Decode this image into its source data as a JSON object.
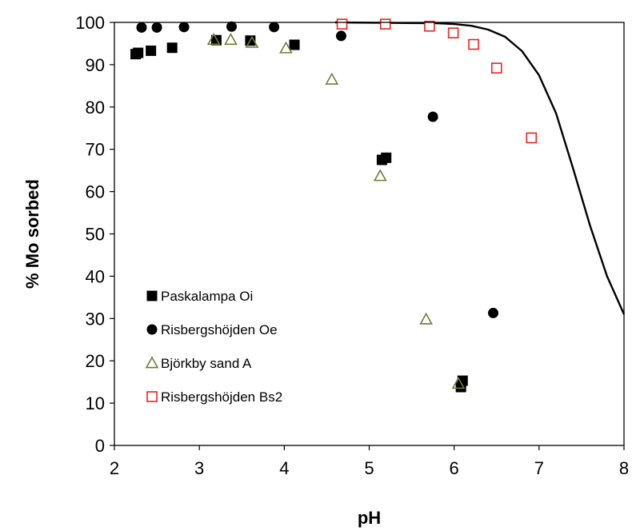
{
  "chart_data": {
    "type": "scatter",
    "title": "",
    "xlabel": "pH",
    "ylabel": "% Mo sorbed",
    "xlim": [
      2,
      8
    ],
    "ylim": [
      0,
      100
    ],
    "xticks": [
      "2",
      "3",
      "4",
      "5",
      "6",
      "7",
      "8"
    ],
    "yticks": [
      "0",
      "10",
      "20",
      "30",
      "40",
      "50",
      "60",
      "70",
      "80",
      "90",
      "100"
    ],
    "grid": false,
    "legend_position": "left",
    "series": [
      {
        "name": "Paskalampa Oi",
        "marker": "filled-square",
        "color": "#000000",
        "points": [
          [
            2.25,
            92.5
          ],
          [
            2.28,
            92.8
          ],
          [
            2.43,
            93.3
          ],
          [
            2.68,
            94.0
          ],
          [
            3.2,
            95.8
          ],
          [
            3.6,
            95.7
          ],
          [
            4.12,
            94.7
          ],
          [
            5.15,
            67.5
          ],
          [
            5.2,
            68.0
          ],
          [
            6.08,
            13.8
          ],
          [
            6.1,
            15.3
          ]
        ]
      },
      {
        "name": "Risbergshöjden Oe",
        "marker": "filled-circle",
        "color": "#000000",
        "points": [
          [
            2.32,
            98.8
          ],
          [
            2.5,
            98.8
          ],
          [
            2.82,
            98.9
          ],
          [
            3.38,
            99.0
          ],
          [
            3.88,
            98.9
          ],
          [
            4.67,
            96.8
          ],
          [
            5.75,
            77.7
          ],
          [
            6.46,
            31.3
          ]
        ]
      },
      {
        "name": "Björkby sand A",
        "marker": "open-triangle",
        "color": "#6b7f35",
        "points": [
          [
            3.17,
            95.9
          ],
          [
            3.37,
            95.9
          ],
          [
            3.62,
            95.2
          ],
          [
            4.02,
            93.9
          ],
          [
            4.56,
            86.5
          ],
          [
            5.13,
            63.7
          ],
          [
            5.67,
            29.8
          ],
          [
            6.05,
            14.6
          ]
        ]
      },
      {
        "name": "Risbergshöjden Bs2",
        "marker": "open-square",
        "color": "#e8231f",
        "points": [
          [
            4.68,
            99.6
          ],
          [
            5.19,
            99.6
          ],
          [
            5.71,
            99.1
          ],
          [
            5.99,
            97.5
          ],
          [
            6.23,
            94.8
          ],
          [
            6.5,
            89.2
          ],
          [
            6.91,
            72.7
          ]
        ]
      }
    ],
    "model_curve": {
      "color": "#000000",
      "points": [
        [
          4.6,
          100.0
        ],
        [
          5.8,
          99.8
        ],
        [
          6.0,
          99.6
        ],
        [
          6.2,
          99.2
        ],
        [
          6.4,
          98.3
        ],
        [
          6.6,
          96.6
        ],
        [
          6.8,
          93.2
        ],
        [
          7.0,
          87.5
        ],
        [
          7.2,
          78.5
        ],
        [
          7.4,
          65.5
        ],
        [
          7.6,
          52.0
        ],
        [
          7.8,
          40.0
        ],
        [
          8.0,
          31.0
        ]
      ]
    }
  }
}
